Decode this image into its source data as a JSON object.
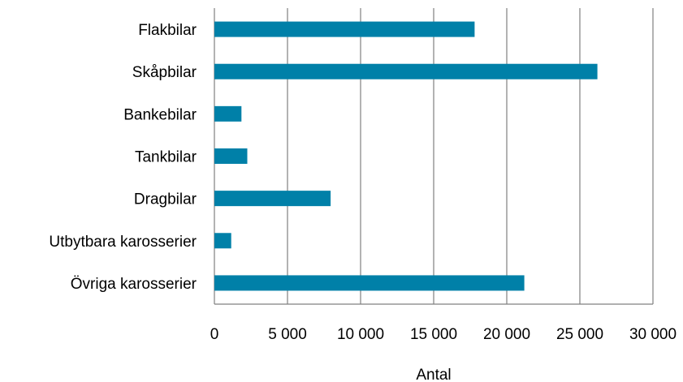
{
  "chart_data": {
    "type": "bar",
    "orientation": "horizontal",
    "categories": [
      "Flakbilar",
      "Skåpbilar",
      "Bankebilar",
      "Tankbilar",
      "Dragbilar",
      "Utbytbara karosserier",
      "Övriga karosserier"
    ],
    "values": [
      17800,
      26200,
      1850,
      2250,
      7950,
      1150,
      21200
    ],
    "xlabel": "Antal",
    "ylabel": "",
    "xlim": [
      0,
      30000
    ],
    "xticks": [
      0,
      5000,
      10000,
      15000,
      20000,
      25000,
      30000
    ],
    "xtick_labels": [
      "0",
      "5 000",
      "10 000",
      "15 000",
      "20 000",
      "25 000",
      "30 000"
    ],
    "grid": "vertical",
    "legend": "none",
    "bar_color": "#0080A8",
    "grid_color": "#808080"
  }
}
